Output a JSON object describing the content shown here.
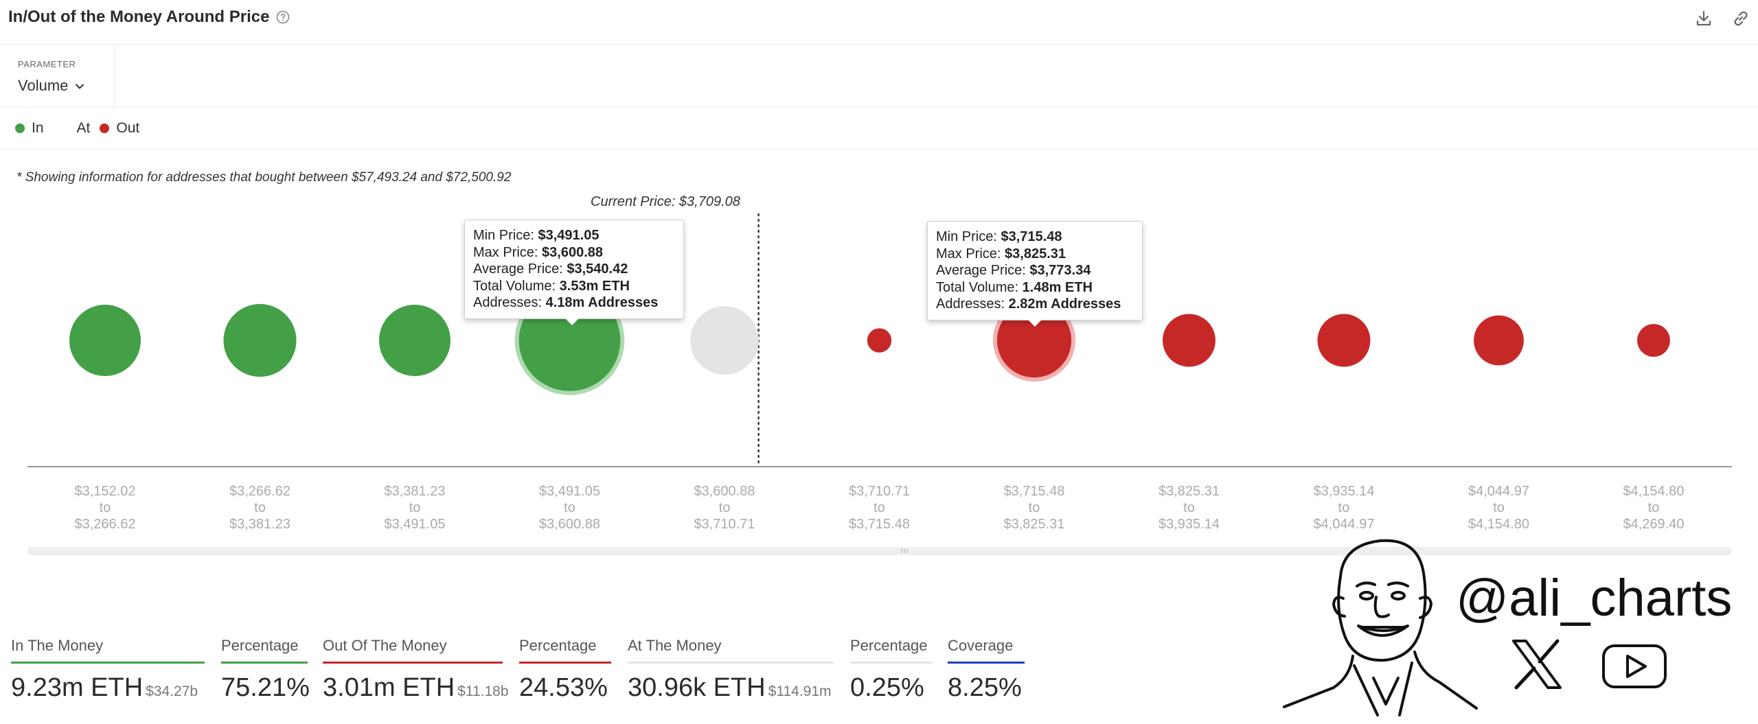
{
  "header": {
    "title": "In/Out of the Money Around Price",
    "accent": "#2b2b2b"
  },
  "parameter": {
    "label": "PARAMETER",
    "value": "Volume"
  },
  "legend": [
    {
      "label": "In",
      "color": "#43a047",
      "icon": "green-dot"
    },
    {
      "label": "At",
      "color": "#e4e4e4",
      "icon": "none"
    },
    {
      "label": "Out",
      "color": "#c62828",
      "icon": "red-dot"
    }
  ],
  "note": "* Showing information for addresses that bought between $57,493.24 and $72,500.92",
  "current_price_label": "Current Price: $3,709.08",
  "colors": {
    "in": "#43a047",
    "at": "#e4e4e4",
    "out": "#c62828",
    "coverage": "#1f3fbf"
  },
  "chart_data": {
    "type": "bubble",
    "categories": [
      {
        "from": "$3,152.02",
        "to": "$3,266.62",
        "status": "in",
        "size": 1.0
      },
      {
        "from": "$3,266.62",
        "to": "$3,381.23",
        "status": "in",
        "size": 1.02
      },
      {
        "from": "$3,381.23",
        "to": "$3,491.05",
        "status": "in",
        "size": 1.0
      },
      {
        "from": "$3,491.05",
        "to": "$3,600.88",
        "status": "in",
        "size": 1.42,
        "highlight": true
      },
      {
        "from": "$3,600.88",
        "to": "$3,710.71",
        "status": "at",
        "size": 0.96
      },
      {
        "from": "$3,710.71",
        "to": "$3,715.48",
        "status": "out",
        "size": 0.34
      },
      {
        "from": "$3,715.48",
        "to": "$3,825.31",
        "status": "out",
        "size": 1.04,
        "highlight": true
      },
      {
        "from": "$3,825.31",
        "to": "$3,935.14",
        "status": "out",
        "size": 0.74
      },
      {
        "from": "$3,935.14",
        "to": "$4,044.97",
        "status": "out",
        "size": 0.74
      },
      {
        "from": "$4,044.97",
        "to": "$4,154.80",
        "status": "out",
        "size": 0.7
      },
      {
        "from": "$4,154.80",
        "to": "$4,269.40",
        "status": "out",
        "size": 0.46
      }
    ],
    "tick_sep": "to",
    "current_price": 3709.08
  },
  "tooltips": [
    {
      "min_label": "Min Price:",
      "min": "$3,491.05",
      "max_label": "Max Price:",
      "max": "$3,600.88",
      "avg_label": "Average Price:",
      "avg": "$3,540.42",
      "vol_label": "Total Volume:",
      "vol": "3.53m ETH",
      "addr_label": "Addresses:",
      "addr": "4.18m Addresses"
    },
    {
      "min_label": "Min Price:",
      "min": "$3,715.48",
      "max_label": "Max Price:",
      "max": "$3,825.31",
      "avg_label": "Average Price:",
      "avg": "$3,773.34",
      "vol_label": "Total Volume:",
      "vol": "1.48m ETH",
      "addr_label": "Addresses:",
      "addr": "2.82m Addresses"
    }
  ],
  "stats": {
    "in_label": "In The Money",
    "in_value": "9.23m ETH",
    "in_sub": "$34.27b",
    "in_pct_label": "Percentage",
    "in_pct": "75.21%",
    "out_label": "Out Of The Money",
    "out_value": "3.01m ETH",
    "out_sub": "$11.18b",
    "out_pct_label": "Percentage",
    "out_pct": "24.53%",
    "at_label": "At The Money",
    "at_value": "30.96k ETH",
    "at_sub": "$114.91m",
    "at_pct_label": "Percentage",
    "at_pct": "0.25%",
    "cov_label": "Coverage",
    "cov_value": "8.25%"
  },
  "watermark": {
    "handle": "@ali_charts",
    "icons": [
      "x-logo",
      "youtube-logo",
      "cartoon-face"
    ]
  }
}
